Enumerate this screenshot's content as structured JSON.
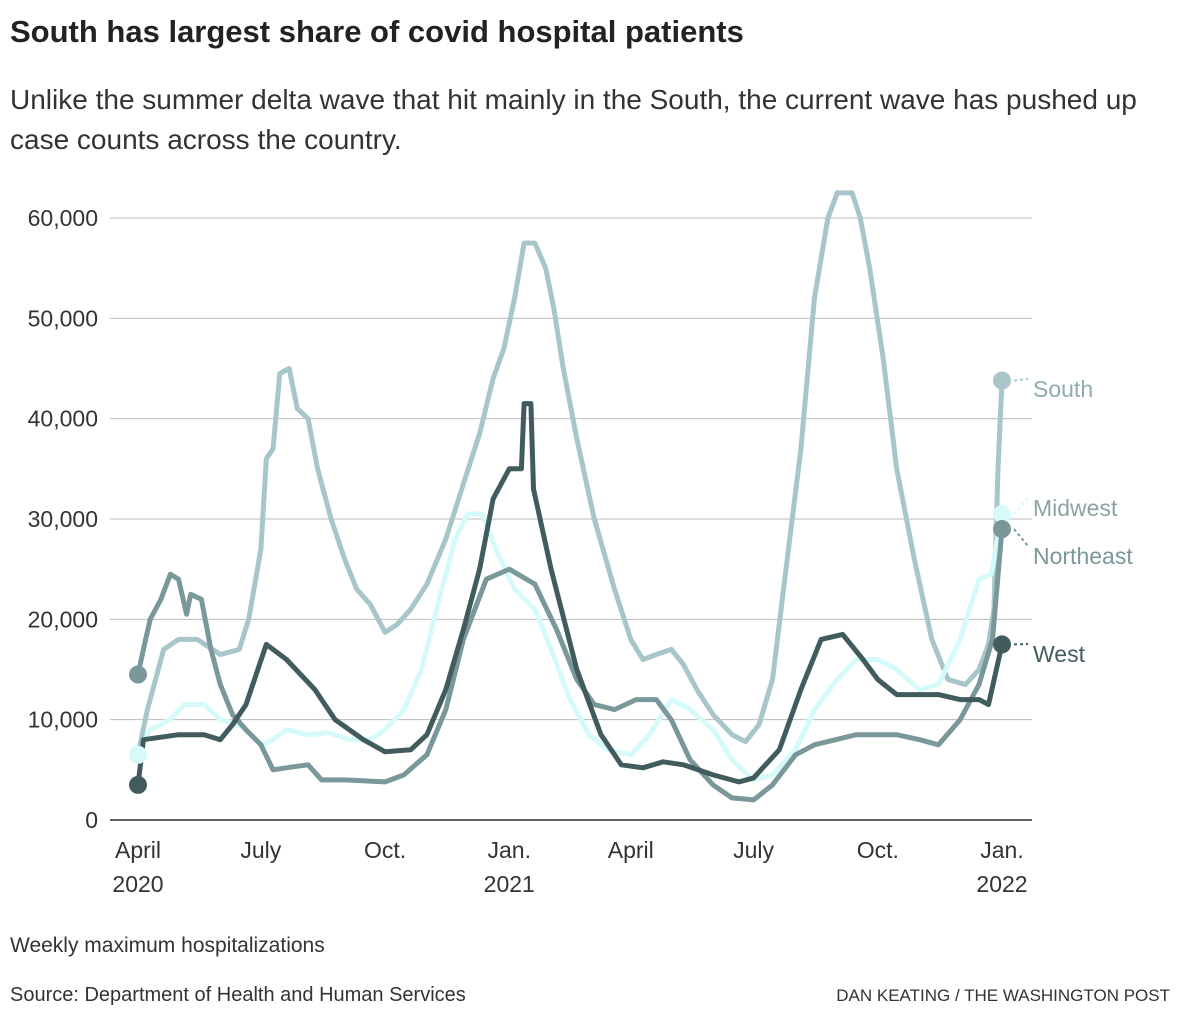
{
  "title": "South has largest share of covid hospital patients",
  "subtitle": "Unlike the summer delta wave that hit mainly in the South, the current wave has pushed up case counts across the country.",
  "note": "Weekly maximum hospitalizations",
  "source": "Source: Department of Health and Human Services",
  "credit": "DAN KEATING / THE WASHINGTON POST",
  "chart_data": {
    "type": "line",
    "xlim": [
      "2020-04-01",
      "2022-01-01"
    ],
    "ylim": [
      0,
      60000
    ],
    "yticks": [
      0,
      10000,
      20000,
      30000,
      40000,
      50000,
      60000
    ],
    "ytick_labels": [
      "0",
      "10,000",
      "20,000",
      "30,000",
      "40,000",
      "50,000",
      "60,000"
    ],
    "xticks": [
      {
        "date": "2020-04-01",
        "label": "April",
        "year": "2020"
      },
      {
        "date": "2020-07-01",
        "label": "July",
        "year": ""
      },
      {
        "date": "2020-10-01",
        "label": "Oct.",
        "year": ""
      },
      {
        "date": "2021-01-01",
        "label": "Jan.",
        "year": "2021"
      },
      {
        "date": "2021-04-01",
        "label": "April",
        "year": ""
      },
      {
        "date": "2021-07-01",
        "label": "July",
        "year": ""
      },
      {
        "date": "2021-10-01",
        "label": "Oct.",
        "year": ""
      },
      {
        "date": "2022-01-01",
        "label": "Jan.",
        "year": "2022"
      }
    ],
    "grid": true,
    "legend": "direct labels at right end",
    "series": [
      {
        "name": "South",
        "color": "#a8c5c9",
        "points": [
          [
            "2020-04-01",
            6500
          ],
          [
            "2020-04-08",
            11000
          ],
          [
            "2020-04-20",
            17000
          ],
          [
            "2020-05-01",
            18000
          ],
          [
            "2020-05-15",
            18000
          ],
          [
            "2020-06-01",
            16500
          ],
          [
            "2020-06-15",
            17000
          ],
          [
            "2020-06-22",
            20000
          ],
          [
            "2020-07-01",
            27000
          ],
          [
            "2020-07-05",
            36000
          ],
          [
            "2020-07-10",
            37000
          ],
          [
            "2020-07-15",
            44500
          ],
          [
            "2020-07-22",
            45000
          ],
          [
            "2020-07-28",
            41000
          ],
          [
            "2020-08-05",
            40000
          ],
          [
            "2020-08-12",
            35000
          ],
          [
            "2020-08-22",
            30000
          ],
          [
            "2020-09-01",
            26000
          ],
          [
            "2020-09-10",
            23000
          ],
          [
            "2020-09-20",
            21500
          ],
          [
            "2020-10-01",
            18700
          ],
          [
            "2020-10-10",
            19500
          ],
          [
            "2020-10-20",
            21000
          ],
          [
            "2020-11-01",
            23500
          ],
          [
            "2020-11-15",
            28000
          ],
          [
            "2020-11-28",
            33500
          ],
          [
            "2020-12-10",
            38500
          ],
          [
            "2020-12-20",
            44000
          ],
          [
            "2020-12-28",
            47000
          ],
          [
            "2021-01-05",
            52000
          ],
          [
            "2021-01-12",
            57500
          ],
          [
            "2021-01-20",
            57500
          ],
          [
            "2021-01-28",
            55000
          ],
          [
            "2021-02-03",
            51000
          ],
          [
            "2021-02-10",
            45000
          ],
          [
            "2021-02-20",
            38000
          ],
          [
            "2021-03-05",
            30000
          ],
          [
            "2021-03-20",
            23000
          ],
          [
            "2021-04-01",
            18000
          ],
          [
            "2021-04-10",
            16000
          ],
          [
            "2021-04-20",
            16500
          ],
          [
            "2021-05-01",
            17000
          ],
          [
            "2021-05-10",
            15500
          ],
          [
            "2021-05-20",
            13000
          ],
          [
            "2021-06-01",
            10500
          ],
          [
            "2021-06-15",
            8500
          ],
          [
            "2021-06-25",
            7800
          ],
          [
            "2021-07-05",
            9500
          ],
          [
            "2021-07-15",
            14000
          ],
          [
            "2021-07-25",
            25000
          ],
          [
            "2021-08-05",
            37000
          ],
          [
            "2021-08-15",
            52000
          ],
          [
            "2021-08-25",
            60000
          ],
          [
            "2021-09-01",
            62500
          ],
          [
            "2021-09-12",
            62500
          ],
          [
            "2021-09-18",
            60000
          ],
          [
            "2021-09-25",
            55000
          ],
          [
            "2021-10-05",
            46000
          ],
          [
            "2021-10-15",
            35000
          ],
          [
            "2021-10-28",
            26000
          ],
          [
            "2021-11-10",
            18000
          ],
          [
            "2021-11-22",
            14000
          ],
          [
            "2021-12-05",
            13500
          ],
          [
            "2021-12-15",
            15000
          ],
          [
            "2021-12-22",
            17500
          ],
          [
            "2021-12-26",
            21000
          ],
          [
            "2021-12-29",
            35000
          ],
          [
            "2022-01-01",
            43800
          ]
        ]
      },
      {
        "name": "Midwest",
        "color": "#d6fafa",
        "points": [
          [
            "2020-04-01",
            6500
          ],
          [
            "2020-04-10",
            9000
          ],
          [
            "2020-04-25",
            10000
          ],
          [
            "2020-05-05",
            11500
          ],
          [
            "2020-05-20",
            11500
          ],
          [
            "2020-06-01",
            10000
          ],
          [
            "2020-06-15",
            9500
          ],
          [
            "2020-07-01",
            7500
          ],
          [
            "2020-07-10",
            8000
          ],
          [
            "2020-07-20",
            9000
          ],
          [
            "2020-08-05",
            8500
          ],
          [
            "2020-08-20",
            8700
          ],
          [
            "2020-09-05",
            8000
          ],
          [
            "2020-09-20",
            8000
          ],
          [
            "2020-10-01",
            9000
          ],
          [
            "2020-10-15",
            11000
          ],
          [
            "2020-10-28",
            15000
          ],
          [
            "2020-11-10",
            22000
          ],
          [
            "2020-11-22",
            28000
          ],
          [
            "2020-12-01",
            30500
          ],
          [
            "2020-12-12",
            30500
          ],
          [
            "2020-12-22",
            27000
          ],
          [
            "2021-01-05",
            23000
          ],
          [
            "2021-01-20",
            21000
          ],
          [
            "2021-02-01",
            17000
          ],
          [
            "2021-02-15",
            12000
          ],
          [
            "2021-03-01",
            8500
          ],
          [
            "2021-03-15",
            7000
          ],
          [
            "2021-04-01",
            6500
          ],
          [
            "2021-04-15",
            8500
          ],
          [
            "2021-05-01",
            12000
          ],
          [
            "2021-05-15",
            11000
          ],
          [
            "2021-06-01",
            9000
          ],
          [
            "2021-06-15",
            6000
          ],
          [
            "2021-07-01",
            4000
          ],
          [
            "2021-07-15",
            4500
          ],
          [
            "2021-08-01",
            7000
          ],
          [
            "2021-08-15",
            11000
          ],
          [
            "2021-09-01",
            14000
          ],
          [
            "2021-09-15",
            16000
          ],
          [
            "2021-10-01",
            16000
          ],
          [
            "2021-10-15",
            15000
          ],
          [
            "2021-11-01",
            13000
          ],
          [
            "2021-11-15",
            13500
          ],
          [
            "2021-12-01",
            18000
          ],
          [
            "2021-12-15",
            24000
          ],
          [
            "2021-12-24",
            24500
          ],
          [
            "2022-01-01",
            30500
          ]
        ]
      },
      {
        "name": "Northeast",
        "color": "#7a9799",
        "points": [
          [
            "2020-04-01",
            14500
          ],
          [
            "2020-04-05",
            17000
          ],
          [
            "2020-04-10",
            20000
          ],
          [
            "2020-04-18",
            22000
          ],
          [
            "2020-04-25",
            24500
          ],
          [
            "2020-05-01",
            24000
          ],
          [
            "2020-05-07",
            20500
          ],
          [
            "2020-05-10",
            22500
          ],
          [
            "2020-05-18",
            22000
          ],
          [
            "2020-05-25",
            17000
          ],
          [
            "2020-06-01",
            13500
          ],
          [
            "2020-06-10",
            10500
          ],
          [
            "2020-06-20",
            9000
          ],
          [
            "2020-07-01",
            7500
          ],
          [
            "2020-07-10",
            5000
          ],
          [
            "2020-07-25",
            5300
          ],
          [
            "2020-08-05",
            5500
          ],
          [
            "2020-08-15",
            4000
          ],
          [
            "2020-09-01",
            4000
          ],
          [
            "2020-10-01",
            3800
          ],
          [
            "2020-10-15",
            4500
          ],
          [
            "2020-11-01",
            6500
          ],
          [
            "2020-11-15",
            11000
          ],
          [
            "2020-11-28",
            18000
          ],
          [
            "2020-12-15",
            24000
          ],
          [
            "2021-01-01",
            25000
          ],
          [
            "2021-01-20",
            23500
          ],
          [
            "2021-02-05",
            19000
          ],
          [
            "2021-02-20",
            14000
          ],
          [
            "2021-03-05",
            11500
          ],
          [
            "2021-03-20",
            11000
          ],
          [
            "2021-04-05",
            12000
          ],
          [
            "2021-04-20",
            12000
          ],
          [
            "2021-05-01",
            10000
          ],
          [
            "2021-05-15",
            6000
          ],
          [
            "2021-06-01",
            3500
          ],
          [
            "2021-06-15",
            2200
          ],
          [
            "2021-07-01",
            2000
          ],
          [
            "2021-07-15",
            3500
          ],
          [
            "2021-08-01",
            6500
          ],
          [
            "2021-08-15",
            7500
          ],
          [
            "2021-09-15",
            8500
          ],
          [
            "2021-10-15",
            8500
          ],
          [
            "2021-11-01",
            8000
          ],
          [
            "2021-11-15",
            7500
          ],
          [
            "2021-12-01",
            10000
          ],
          [
            "2021-12-15",
            13500
          ],
          [
            "2021-12-25",
            18000
          ],
          [
            "2022-01-01",
            29000
          ]
        ]
      },
      {
        "name": "West",
        "color": "#425c5e",
        "points": [
          [
            "2020-04-01",
            3500
          ],
          [
            "2020-04-05",
            8000
          ],
          [
            "2020-05-01",
            8500
          ],
          [
            "2020-05-20",
            8500
          ],
          [
            "2020-06-01",
            8000
          ],
          [
            "2020-06-10",
            9500
          ],
          [
            "2020-06-20",
            11500
          ],
          [
            "2020-07-05",
            17500
          ],
          [
            "2020-07-20",
            16000
          ],
          [
            "2020-08-10",
            13000
          ],
          [
            "2020-08-25",
            10000
          ],
          [
            "2020-09-15",
            8000
          ],
          [
            "2020-10-01",
            6800
          ],
          [
            "2020-10-20",
            7000
          ],
          [
            "2020-11-01",
            8500
          ],
          [
            "2020-11-15",
            13000
          ],
          [
            "2020-11-28",
            19000
          ],
          [
            "2020-12-10",
            25000
          ],
          [
            "2020-12-20",
            32000
          ],
          [
            "2021-01-01",
            35000
          ],
          [
            "2021-01-10",
            35000
          ],
          [
            "2021-01-12",
            41500
          ],
          [
            "2021-01-17",
            41500
          ],
          [
            "2021-01-19",
            33000
          ],
          [
            "2021-02-01",
            25000
          ],
          [
            "2021-02-20",
            15000
          ],
          [
            "2021-03-10",
            8500
          ],
          [
            "2021-03-25",
            5500
          ],
          [
            "2021-04-10",
            5200
          ],
          [
            "2021-04-25",
            5800
          ],
          [
            "2021-05-10",
            5500
          ],
          [
            "2021-06-01",
            4500
          ],
          [
            "2021-06-20",
            3800
          ],
          [
            "2021-07-01",
            4200
          ],
          [
            "2021-07-20",
            7000
          ],
          [
            "2021-08-05",
            13000
          ],
          [
            "2021-08-20",
            18000
          ],
          [
            "2021-09-05",
            18500
          ],
          [
            "2021-09-20",
            16000
          ],
          [
            "2021-10-01",
            14000
          ],
          [
            "2021-10-15",
            12500
          ],
          [
            "2021-11-01",
            12500
          ],
          [
            "2021-11-15",
            12500
          ],
          [
            "2021-12-01",
            12000
          ],
          [
            "2021-12-15",
            12000
          ],
          [
            "2021-12-22",
            11500
          ],
          [
            "2022-01-01",
            17500
          ]
        ]
      }
    ]
  }
}
